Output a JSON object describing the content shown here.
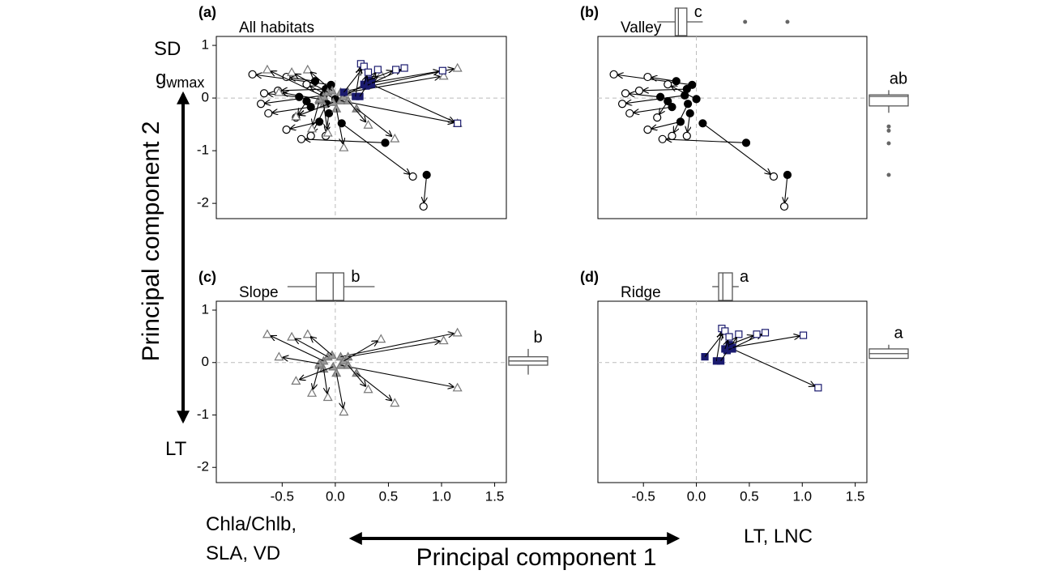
{
  "figure": {
    "y_top_label": "SD",
    "y_top_label_2": "g",
    "y_top_label_2_sub": "wmax",
    "y_axis_title": "Principal component 2",
    "y_bottom_label": "LT",
    "x_left_label_1": "Chla/Chlb,",
    "x_left_label_2": "SLA, VD",
    "x_right_label": "LT, LNC",
    "x_axis_title": "Principal component 1"
  },
  "chart_data": [
    {
      "type": "arrow",
      "label": "(a)",
      "title": "All habitats",
      "xlim": [
        -1.12,
        1.61
      ],
      "ylim": [
        -2.29,
        1.17
      ],
      "yticks": [
        1,
        0,
        -1,
        -2
      ],
      "zero_lines": true,
      "series": [
        {
          "marker": "circle",
          "color": "#000000",
          "x_start": [
            0.86,
            0.06,
            0.47,
            -0.04,
            -0.11,
            -0.23,
            -0.15,
            -0.09,
            -0.19,
            -0.27,
            -0.08,
            -0.06,
            -0.34,
            0.0
          ],
          "y_start": [
            -1.46,
            -0.48,
            -0.85,
            0.25,
            0.05,
            -0.17,
            -0.45,
            0.17,
            0.32,
            -0.06,
            -0.11,
            -0.29,
            0.02,
            -0.02
          ],
          "x_end": [
            0.83,
            0.73,
            -0.32,
            -0.78,
            -0.7,
            -0.63,
            -0.46,
            -0.54,
            -0.46,
            -0.37,
            -0.23,
            -0.09,
            -0.67,
            -0.27
          ],
          "y_end": [
            -2.06,
            -1.49,
            -0.78,
            0.45,
            -0.11,
            -0.29,
            -0.6,
            0.14,
            0.4,
            -0.37,
            -0.72,
            -0.72,
            0.09,
            0.26
          ]
        },
        {
          "marker": "triangle",
          "color": "#999999",
          "x_start": [
            0.05,
            0.12,
            0.05,
            0.2,
            0.01,
            -0.11,
            -0.15,
            -0.11,
            -0.07,
            -0.15,
            -0.03,
            0.08,
            0.12,
            -0.02
          ],
          "y_start": [
            0.11,
            0.11,
            -0.05,
            -0.2,
            -0.2,
            -0.12,
            -0.05,
            0.03,
            0.11,
            -0.02,
            0.14,
            0.03,
            -0.05,
            -0.08
          ],
          "x_end": [
            1.15,
            1.02,
            1.15,
            0.56,
            0.08,
            -0.07,
            -0.22,
            -0.64,
            -0.41,
            -0.53,
            -0.26,
            0.43,
            0.31,
            -0.37
          ],
          "y_end": [
            0.57,
            0.42,
            -0.48,
            -0.77,
            -0.94,
            -0.66,
            -0.58,
            0.54,
            0.49,
            0.11,
            0.54,
            0.45,
            -0.51,
            -0.35
          ]
        },
        {
          "marker": "square",
          "color": "#1a1a6e",
          "x_start": [
            0.34,
            0.34,
            0.29,
            0.19,
            0.23,
            0.08,
            0.31,
            0.27
          ],
          "y_start": [
            0.26,
            0.29,
            0.23,
            0.03,
            0.03,
            0.11,
            0.34,
            0.26
          ],
          "x_end": [
            1.15,
            1.01,
            0.65,
            0.24,
            0.4,
            0.27,
            0.57,
            0.31
          ],
          "y_end": [
            -0.48,
            0.52,
            0.57,
            0.65,
            0.54,
            0.6,
            0.54,
            0.49
          ]
        }
      ]
    },
    {
      "type": "arrow",
      "label": "(b)",
      "title": "Valley",
      "xlim": [
        -0.93,
        1.61
      ],
      "ylim": [
        -2.29,
        1.17
      ],
      "zero_lines": true,
      "series": [
        {
          "marker": "circle",
          "color": "#000000",
          "x_start": [
            0.86,
            0.06,
            0.47,
            -0.04,
            -0.11,
            -0.23,
            -0.15,
            -0.09,
            -0.19,
            -0.27,
            -0.08,
            -0.06,
            -0.34,
            0.0
          ],
          "y_start": [
            -1.46,
            -0.48,
            -0.85,
            0.25,
            0.05,
            -0.17,
            -0.45,
            0.17,
            0.32,
            -0.06,
            -0.11,
            -0.29,
            0.02,
            -0.02
          ],
          "x_end": [
            0.83,
            0.73,
            -0.32,
            -0.78,
            -0.7,
            -0.63,
            -0.46,
            -0.54,
            -0.46,
            -0.37,
            -0.23,
            -0.09,
            -0.67,
            -0.27
          ],
          "y_end": [
            -2.06,
            -1.49,
            -0.78,
            0.45,
            -0.11,
            -0.29,
            -0.6,
            0.14,
            0.4,
            -0.37,
            -0.72,
            -0.72,
            0.09,
            0.26
          ]
        }
      ],
      "box_top": {
        "q1": -0.2,
        "median": -0.17,
        "q3": -0.09,
        "whisker_low": -0.37,
        "whisker_high": 0.06,
        "outliers": [
          0.46,
          0.86
        ],
        "label": "c"
      },
      "box_right": {
        "q1": -0.15,
        "median": 0.03,
        "q3": 0.06,
        "whisker_low": -0.28,
        "whisker_high": 0.15,
        "outliers": [
          -0.54,
          -0.62,
          -0.86,
          -1.46
        ],
        "label": "ab"
      }
    },
    {
      "type": "arrow",
      "label": "(c)",
      "title": "Slope",
      "xlim": [
        -1.12,
        1.61
      ],
      "ylim": [
        -2.29,
        1.17
      ],
      "zero_lines": true,
      "yticks": [
        1,
        0,
        -1,
        -2
      ],
      "xticks": [
        -0.5,
        {
          "value": 0,
          "label": "0.0"
        },
        0.5,
        {
          "value": 1,
          "label": "1.0"
        },
        1.5
      ],
      "series": [
        {
          "marker": "triangle",
          "color": "#999999",
          "x_start": [
            0.05,
            0.12,
            0.05,
            0.2,
            0.01,
            -0.11,
            -0.15,
            -0.11,
            -0.07,
            -0.15,
            -0.03,
            0.08,
            0.12,
            -0.02
          ],
          "y_start": [
            0.11,
            0.11,
            -0.05,
            -0.2,
            -0.2,
            -0.12,
            -0.05,
            0.03,
            0.11,
            -0.02,
            0.14,
            0.03,
            -0.05,
            -0.08
          ],
          "x_end": [
            1.15,
            1.02,
            1.15,
            0.56,
            0.08,
            -0.07,
            -0.22,
            -0.64,
            -0.41,
            -0.53,
            -0.26,
            0.43,
            0.31,
            -0.37
          ],
          "y_end": [
            0.57,
            0.42,
            -0.48,
            -0.77,
            -0.94,
            -0.66,
            -0.58,
            0.54,
            0.49,
            0.11,
            0.54,
            0.45,
            -0.51,
            -0.35
          ]
        }
      ],
      "box_top": {
        "q1": -0.18,
        "median": -0.02,
        "q3": 0.08,
        "whisker_low": -0.45,
        "whisker_high": 0.37,
        "outliers": [],
        "label": "b"
      },
      "box_right": {
        "q1": -0.05,
        "median": 0.03,
        "q3": 0.11,
        "whisker_low": -0.23,
        "whisker_high": 0.26,
        "outliers": [],
        "label": "b"
      }
    },
    {
      "type": "arrow",
      "label": "(d)",
      "title": "Ridge",
      "xlim": [
        -0.93,
        1.61
      ],
      "ylim": [
        -2.29,
        1.17
      ],
      "zero_lines": true,
      "xticks": [
        -0.5,
        {
          "value": 0,
          "label": "0.0"
        },
        0.5,
        {
          "value": 1,
          "label": "1.0"
        },
        1.5
      ],
      "series": [
        {
          "marker": "square",
          "color": "#1a1a6e",
          "x_start": [
            0.34,
            0.34,
            0.29,
            0.19,
            0.23,
            0.08,
            0.31,
            0.27
          ],
          "y_start": [
            0.26,
            0.29,
            0.23,
            0.03,
            0.03,
            0.11,
            0.34,
            0.26
          ],
          "x_end": [
            1.15,
            1.01,
            0.65,
            0.24,
            0.4,
            0.27,
            0.57,
            0.31
          ],
          "y_end": [
            -0.48,
            0.52,
            0.57,
            0.65,
            0.54,
            0.6,
            0.54,
            0.49
          ]
        }
      ],
      "box_top": {
        "q1": 0.21,
        "median": 0.25,
        "q3": 0.34,
        "whisker_low": 0.15,
        "whisker_high": 0.4,
        "outliers": [],
        "label": "a"
      },
      "box_right": {
        "q1": 0.08,
        "median": 0.17,
        "q3": 0.26,
        "whisker_low": 0.08,
        "whisker_high": 0.34,
        "outliers": [],
        "label": "a"
      }
    }
  ]
}
